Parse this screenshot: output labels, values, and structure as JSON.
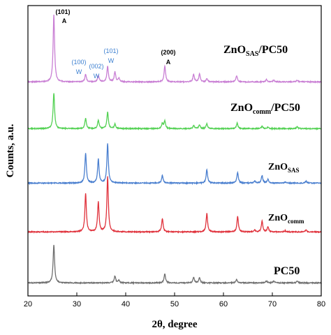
{
  "chart_data": {
    "type": "line",
    "xlabel": "2θ, degree",
    "ylabel": "Counts, a.u.",
    "xlim": [
      20,
      80
    ],
    "xticks": [
      "20",
      "30",
      "40",
      "50",
      "60",
      "70",
      "80"
    ],
    "grid": false,
    "legend": "none",
    "series": [
      {
        "name_parts": [
          [
            "PC50",
            ""
          ]
        ],
        "color": "#6f6f6f",
        "baseline": 0,
        "peaks": [
          [
            25.3,
            1.0
          ],
          [
            37.8,
            0.18
          ],
          [
            38.6,
            0.07
          ],
          [
            48.0,
            0.24
          ],
          [
            53.9,
            0.14
          ],
          [
            55.1,
            0.14
          ],
          [
            62.7,
            0.09
          ],
          [
            68.8,
            0.05
          ],
          [
            70.3,
            0.05
          ],
          [
            75.1,
            0.05
          ]
        ]
      },
      {
        "name_parts": [
          [
            "ZnO",
            ""
          ],
          [
            "comm",
            "sub"
          ]
        ],
        "color": "#e0323c",
        "baseline": 1,
        "peaks": [
          [
            31.8,
            1.0
          ],
          [
            34.4,
            0.78
          ],
          [
            36.3,
            1.45
          ],
          [
            47.5,
            0.35
          ],
          [
            56.6,
            0.48
          ],
          [
            62.9,
            0.4
          ],
          [
            66.4,
            0.05
          ],
          [
            67.9,
            0.28
          ],
          [
            69.1,
            0.13
          ],
          [
            72.6,
            0.03
          ],
          [
            76.9,
            0.05
          ]
        ]
      },
      {
        "name_parts": [
          [
            "ZnO",
            ""
          ],
          [
            "SAS",
            "sub"
          ]
        ],
        "color": "#4a7fcf",
        "baseline": 2,
        "peaks": [
          [
            31.8,
            0.78
          ],
          [
            34.4,
            0.62
          ],
          [
            36.3,
            1.02
          ],
          [
            47.5,
            0.2
          ],
          [
            56.6,
            0.35
          ],
          [
            62.9,
            0.28
          ],
          [
            66.4,
            0.05
          ],
          [
            67.9,
            0.2
          ],
          [
            69.1,
            0.1
          ],
          [
            72.6,
            0.03
          ],
          [
            76.9,
            0.05
          ]
        ]
      },
      {
        "name_parts": [
          [
            "ZnO",
            ""
          ],
          [
            "comm",
            "sub"
          ],
          [
            "/PC50",
            ""
          ]
        ],
        "color": "#53d153",
        "baseline": 3,
        "peaks": [
          [
            25.3,
            0.93
          ],
          [
            31.8,
            0.27
          ],
          [
            34.4,
            0.22
          ],
          [
            36.3,
            0.43
          ],
          [
            37.8,
            0.12
          ],
          [
            47.5,
            0.13
          ],
          [
            48.0,
            0.2
          ],
          [
            53.9,
            0.08
          ],
          [
            55.1,
            0.1
          ],
          [
            56.6,
            0.13
          ],
          [
            62.8,
            0.15
          ],
          [
            67.9,
            0.06
          ],
          [
            69.1,
            0.04
          ],
          [
            75.1,
            0.05
          ]
        ]
      },
      {
        "name_parts": [
          [
            "ZnO",
            ""
          ],
          [
            "SAS",
            "sub"
          ],
          [
            "/PC50",
            ""
          ]
        ],
        "color": "#c97fd4",
        "baseline": 4,
        "peaks": [
          [
            25.3,
            1.75
          ],
          [
            31.8,
            0.2
          ],
          [
            34.4,
            0.17
          ],
          [
            36.3,
            0.4
          ],
          [
            37.8,
            0.26
          ],
          [
            38.6,
            0.1
          ],
          [
            48.0,
            0.42
          ],
          [
            53.9,
            0.19
          ],
          [
            55.1,
            0.2
          ],
          [
            56.6,
            0.08
          ],
          [
            62.7,
            0.16
          ],
          [
            68.8,
            0.06
          ],
          [
            70.3,
            0.05
          ],
          [
            75.1,
            0.05
          ]
        ]
      }
    ],
    "annotations": [
      {
        "text": "(101)",
        "x": 25.3,
        "color": "#000000"
      },
      {
        "text": "A",
        "x": 25.3,
        "color": "#000000"
      },
      {
        "text": "(100)",
        "x": 31.8,
        "color": "#3b7fd0"
      },
      {
        "text": "W",
        "x": 31.8,
        "color": "#3b7fd0"
      },
      {
        "text": "(002)",
        "x": 34.4,
        "color": "#3b7fd0"
      },
      {
        "text": "W",
        "x": 34.4,
        "color": "#3b7fd0"
      },
      {
        "text": "(101)",
        "x": 36.3,
        "color": "#3b7fd0"
      },
      {
        "text": "W",
        "x": 36.3,
        "color": "#3b7fd0"
      },
      {
        "text": "(200)",
        "x": 48.0,
        "color": "#000000"
      },
      {
        "text": "A",
        "x": 48.0,
        "color": "#000000"
      }
    ]
  }
}
